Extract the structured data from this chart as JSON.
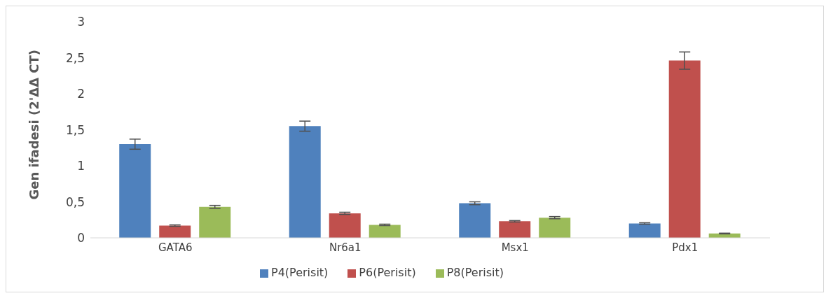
{
  "chart_data": {
    "type": "bar",
    "ylabel": "Gen ifadesi (2'ΔΔ CT)",
    "categories": [
      "GATA6",
      "Nr6a1",
      "Msx1",
      "Pdx1"
    ],
    "series": [
      {
        "name": "P4(Perisit)",
        "color": "#4f81bd",
        "values": [
          1.3,
          1.55,
          0.48,
          0.2
        ],
        "errors": [
          0.07,
          0.07,
          0.02,
          0.01
        ]
      },
      {
        "name": "P6(Perisit)",
        "color": "#c0504d",
        "values": [
          0.17,
          0.34,
          0.23,
          2.46
        ],
        "errors": [
          0.01,
          0.015,
          0.01,
          0.12
        ]
      },
      {
        "name": "P8(Perisit)",
        "color": "#9bbb59",
        "values": [
          0.43,
          0.18,
          0.28,
          0.06
        ],
        "errors": [
          0.02,
          0.01,
          0.015,
          0.005
        ]
      }
    ],
    "ylim": [
      0,
      3
    ],
    "yticks": [
      0,
      {
        "value": 0.5,
        "label": "0,5"
      },
      1,
      {
        "value": 1.5,
        "label": "1,5"
      },
      2,
      {
        "value": 2.5,
        "label": "2,5"
      },
      3
    ],
    "grid": false,
    "legend": "bottom"
  }
}
